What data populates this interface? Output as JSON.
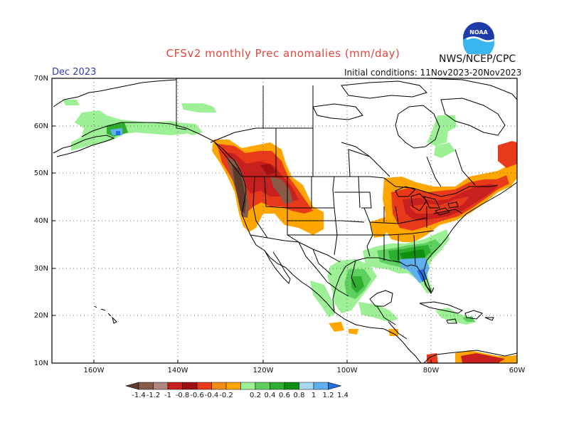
{
  "title": "CFSv2 monthly Prec anomalies (mm/day)",
  "agency": "NWS/NCEP/CPC",
  "logo_text": "NOAA",
  "month": "Dec 2023",
  "initial_conditions": "Initial conditions: 11Nov2023-20Nov2023",
  "lat_labels": [
    "70N",
    "60N",
    "50N",
    "40N",
    "30N",
    "20N",
    "10N"
  ],
  "lon_labels": [
    "160W",
    "140W",
    "120W",
    "100W",
    "80W",
    "60W"
  ],
  "colorbar": {
    "labels": [
      "-1.4",
      "-1.2",
      "-1",
      "-0.8",
      "-0.6",
      "-0.4",
      "-0.2",
      "0.2",
      "0.4",
      "0.6",
      "0.8",
      "1",
      "1.2",
      "1.4"
    ],
    "colors": [
      "#5e3a2a",
      "#8a5a48",
      "#b08880",
      "#c8201e",
      "#a01010",
      "#e83a1a",
      "#f28a1a",
      "#ffa600",
      "#9ef096",
      "#5ed060",
      "#2eb02e",
      "#109010",
      "#a8d8f0",
      "#60b0f0",
      "#2070e0"
    ]
  },
  "regions_palette": {
    "dry_strong": "#5e3a2a",
    "dry_med": "#8a5a48",
    "dry_light": "#c8201e",
    "dry_mod": "#e83a1a",
    "dry_weak": "#ffa600",
    "wet_weak": "#9ef096",
    "wet_mod": "#5ed060",
    "wet_med": "#2eb02e",
    "wet_strong": "#109010",
    "wet_blue": "#60b0f0",
    "wet_deep": "#2070e0"
  }
}
